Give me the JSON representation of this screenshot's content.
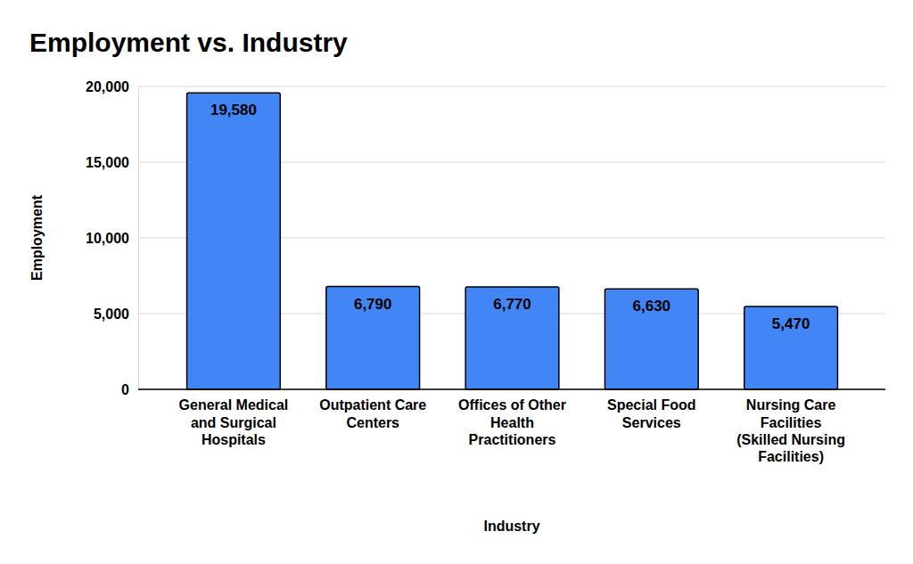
{
  "chart_data": {
    "type": "bar",
    "title": "Employment vs. Industry",
    "x_label": "Industry",
    "y_label": "Employment",
    "categories": [
      "General Medical and Surgical Hospitals",
      "Outpatient Care Centers",
      "Offices of Other Health Practitioners",
      "Special Food Services",
      "Nursing Care Facilities (Skilled Nursing Facilities)"
    ],
    "values": [
      19580,
      6790,
      6770,
      6630,
      5470
    ],
    "value_labels": [
      "19,580",
      "6,790",
      "6,770",
      "6,630",
      "5,470"
    ],
    "color": "#4285f4",
    "ylim": [
      0,
      20000
    ],
    "yticks": [
      0,
      {
        "value": 5000,
        "label": "5,000"
      },
      {
        "value": 10000,
        "label": "10,000"
      },
      {
        "value": 15000,
        "label": "15,000"
      },
      {
        "value": 20000,
        "label": "20,000"
      }
    ],
    "grid": true,
    "data_labels": true
  }
}
